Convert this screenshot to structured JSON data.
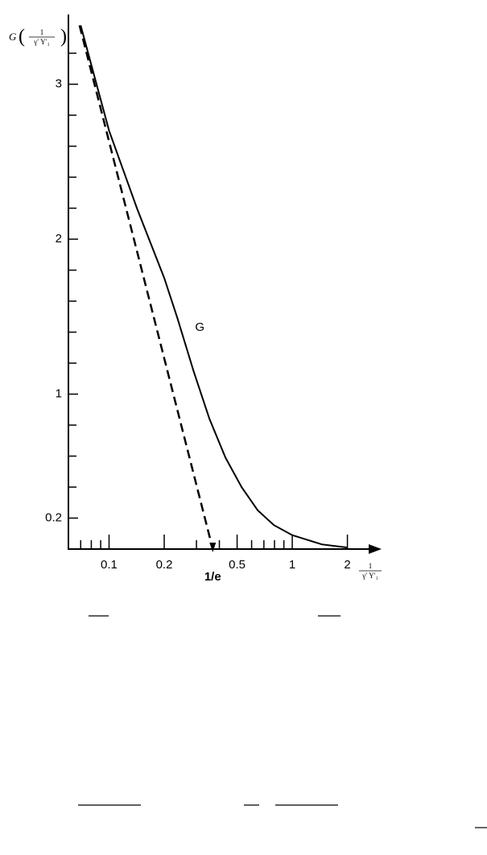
{
  "chart_data": {
    "type": "line",
    "y_label": {
      "function": "G",
      "numerator": "1",
      "denominator": "γ′ Υ′₁"
    },
    "x_label": {
      "numerator": "1",
      "denominator": "γ′ Υ′₁"
    },
    "xscale": "log",
    "xlim": [
      0.06,
      2.95
    ],
    "ylim": [
      0,
      3.45
    ],
    "xticks": [
      0.1,
      0.2,
      0.5,
      1,
      2
    ],
    "xminor": [
      0.07,
      0.08,
      0.09,
      0.3,
      0.4,
      0.6,
      0.7,
      0.8,
      0.9
    ],
    "yticks": [
      0.2,
      1,
      2,
      3
    ],
    "yminor": [
      0.4,
      0.6,
      0.8,
      1.2,
      1.4,
      1.6,
      1.8,
      2.2,
      2.4,
      2.6,
      2.8,
      3.2
    ],
    "grid": false,
    "series": [
      {
        "name": "G",
        "color": "#000000",
        "style": "solid",
        "x": [
          0.07,
          0.1,
          0.142,
          0.2,
          0.236,
          0.289,
          0.353,
          0.432,
          0.529,
          0.648,
          0.793,
          1.0,
          1.45,
          2.0
        ],
        "values": [
          3.38,
          2.7,
          2.2,
          1.75,
          1.49,
          1.15,
          0.84,
          0.59,
          0.4,
          0.25,
          0.155,
          0.09,
          0.03,
          0.01
        ]
      },
      {
        "color": "#000000",
        "style": "dashed",
        "x": [
          0.069,
          0.368
        ],
        "values": [
          3.38,
          0
        ]
      }
    ],
    "annotations": [
      {
        "text": "1/e",
        "x": 0.368
      }
    ]
  }
}
